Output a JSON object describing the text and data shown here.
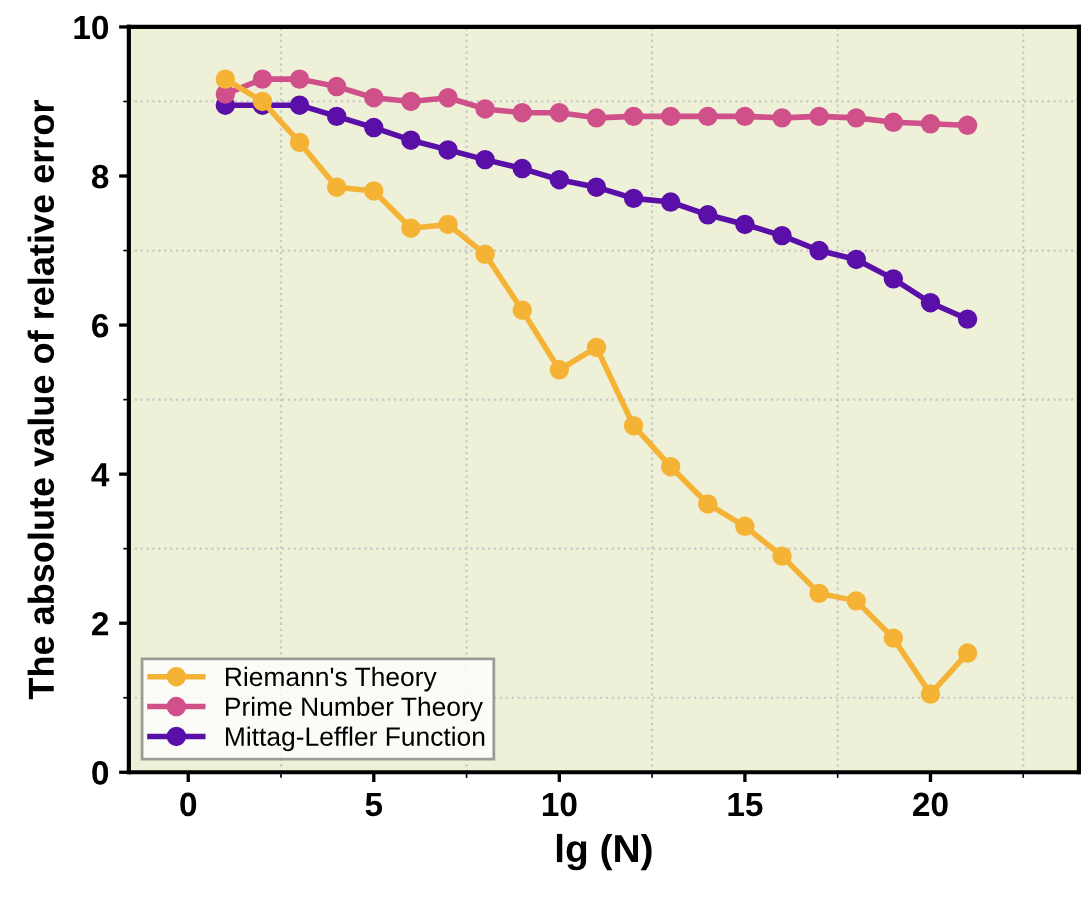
{
  "chart_data": {
    "type": "line",
    "xlabel": "lg (N)",
    "ylabel": "The absolute value of relative error",
    "xlim": [
      -1.6,
      24
    ],
    "ylim": [
      0,
      10
    ],
    "xticks": [
      0,
      5,
      10,
      15,
      20
    ],
    "yticks": [
      0,
      2,
      4,
      6,
      8,
      10
    ],
    "grid": true,
    "legend": "bottom left",
    "marker": "circle",
    "line_style": "solid",
    "x": [
      1,
      2,
      3,
      4,
      5,
      6,
      7,
      8,
      9,
      10,
      11,
      12,
      13,
      14,
      15,
      16,
      17,
      18,
      19,
      20,
      21
    ],
    "series": [
      {
        "name": "Riemann's Theory",
        "color": "#f5b335",
        "values": [
          9.3,
          9.0,
          8.45,
          7.85,
          7.8,
          7.3,
          7.35,
          6.95,
          6.2,
          5.4,
          5.7,
          4.65,
          4.1,
          3.6,
          3.3,
          2.9,
          2.4,
          2.3,
          1.8,
          1.05,
          1.6
        ]
      },
      {
        "name": "Prime Number Theory",
        "color": "#d0508a",
        "values": [
          9.1,
          9.3,
          9.3,
          9.2,
          9.05,
          9.0,
          9.05,
          8.9,
          8.85,
          8.85,
          8.78,
          8.8,
          8.8,
          8.8,
          8.8,
          8.78,
          8.8,
          8.78,
          8.72,
          8.7,
          8.68
        ]
      },
      {
        "name": "Mittag-Leffler Function",
        "color": "#5a0fa8",
        "values": [
          8.95,
          8.95,
          8.95,
          8.8,
          8.65,
          8.48,
          8.35,
          8.22,
          8.1,
          7.95,
          7.85,
          7.7,
          7.65,
          7.48,
          7.35,
          7.2,
          7.0,
          6.88,
          6.62,
          6.3,
          6.08
        ]
      }
    ]
  }
}
